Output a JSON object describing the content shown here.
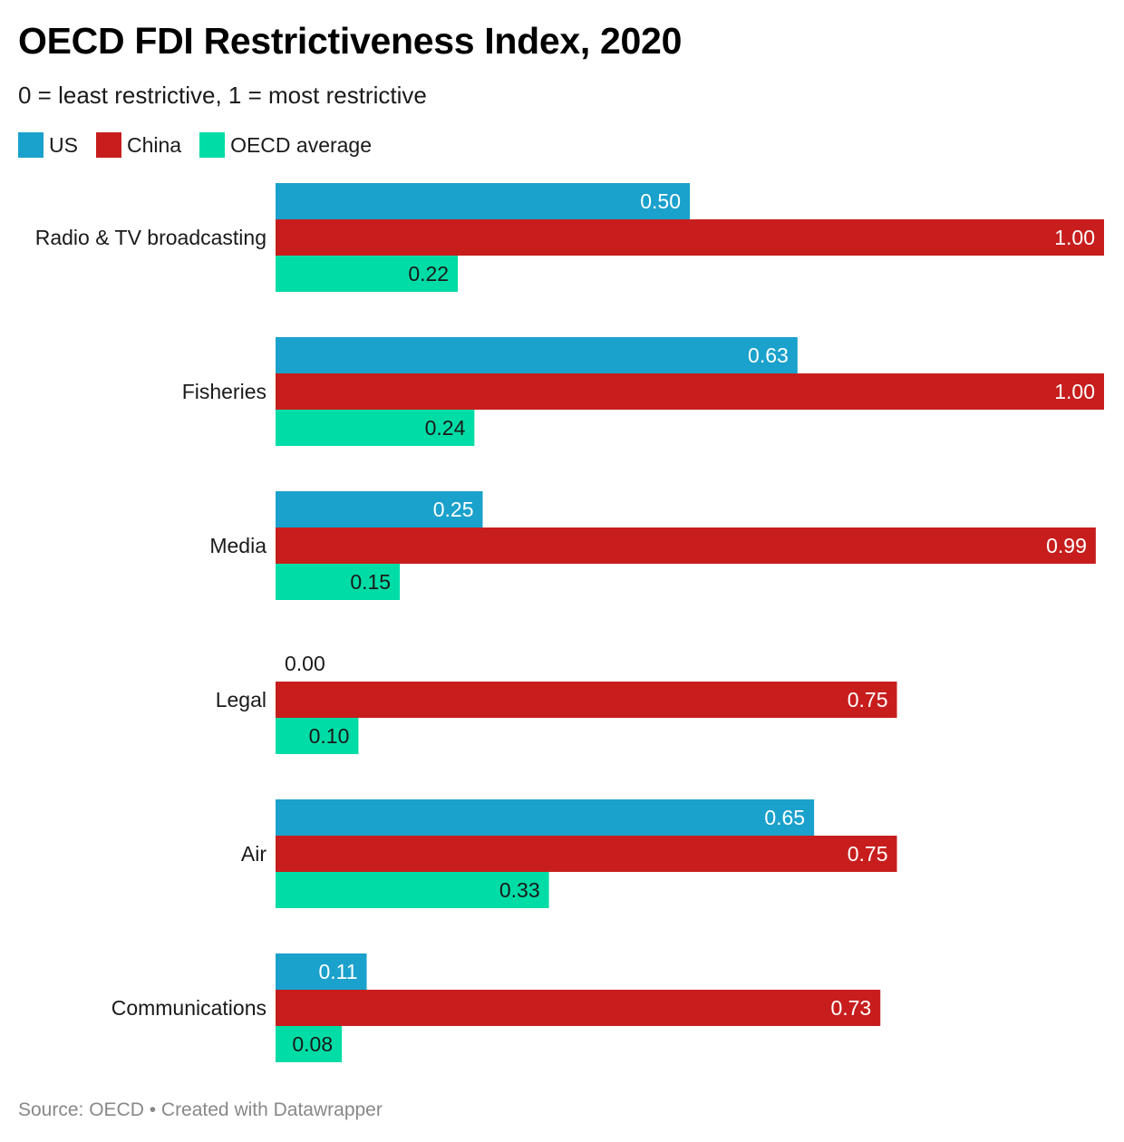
{
  "title": "OECD FDI Restrictiveness Index, 2020",
  "subtitle": "0 = least restrictive, 1 = most restrictive",
  "footer": "Source: OECD • Created with Datawrapper",
  "legend": [
    {
      "label": "US",
      "color": "#1aa1cc"
    },
    {
      "label": "China",
      "color": "#c71e1d"
    },
    {
      "label": "OECD average",
      "color": "#00dca6"
    }
  ],
  "chart_data": {
    "type": "bar",
    "orientation": "horizontal",
    "title": "OECD FDI Restrictiveness Index, 2020",
    "subtitle": "0 = least restrictive, 1 = most restrictive",
    "categories": [
      "Radio & TV broadcasting",
      "Fisheries",
      "Media",
      "Legal",
      "Air",
      "Communications"
    ],
    "series": [
      {
        "name": "US",
        "color": "#1aa1cc",
        "label_color": "#ffffff",
        "values": [
          0.5,
          0.63,
          0.25,
          0.0,
          0.65,
          0.11
        ],
        "labels": [
          "0.50",
          "0.63",
          "0.25",
          "0.00",
          "0.65",
          "0.11"
        ]
      },
      {
        "name": "China",
        "color": "#c71e1d",
        "label_color": "#ffffff",
        "values": [
          1.0,
          1.0,
          0.99,
          0.75,
          0.75,
          0.73
        ],
        "labels": [
          "1.00",
          "1.00",
          "0.99",
          "0.75",
          "0.75",
          "0.73"
        ]
      },
      {
        "name": "OECD average",
        "color": "#00dca6",
        "label_color": "#1a1a1a",
        "values": [
          0.22,
          0.24,
          0.15,
          0.1,
          0.33,
          0.08
        ],
        "labels": [
          "0.22",
          "0.24",
          "0.15",
          "0.10",
          "0.33",
          "0.08"
        ]
      }
    ],
    "xlim": [
      0,
      1
    ],
    "grid": false,
    "legend_position": "top-left"
  }
}
